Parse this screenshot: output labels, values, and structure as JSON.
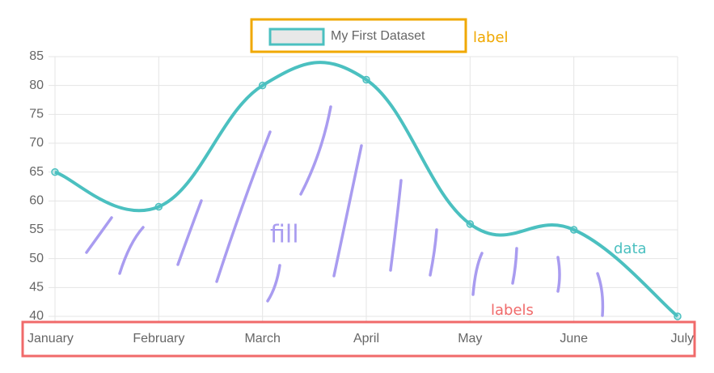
{
  "chart_data": {
    "type": "line",
    "categories": [
      "January",
      "February",
      "March",
      "April",
      "May",
      "June",
      "July"
    ],
    "series": [
      {
        "name": "My First Dataset",
        "color": "#4bc0c0",
        "values": [
          65,
          59,
          80,
          81,
          56,
          55,
          40
        ]
      }
    ],
    "ylim": [
      40,
      85
    ],
    "yticks": [
      40,
      45,
      50,
      55,
      60,
      65,
      70,
      75,
      80,
      85
    ],
    "grid": true,
    "legend": "top",
    "annotations": [
      {
        "text": "label",
        "color": "#f0a800"
      },
      {
        "text": "fill",
        "color": "#a99cf0"
      },
      {
        "text": "data",
        "color": "#4bc0c0"
      },
      {
        "text": "labels",
        "color": "#f06a6a"
      }
    ]
  }
}
